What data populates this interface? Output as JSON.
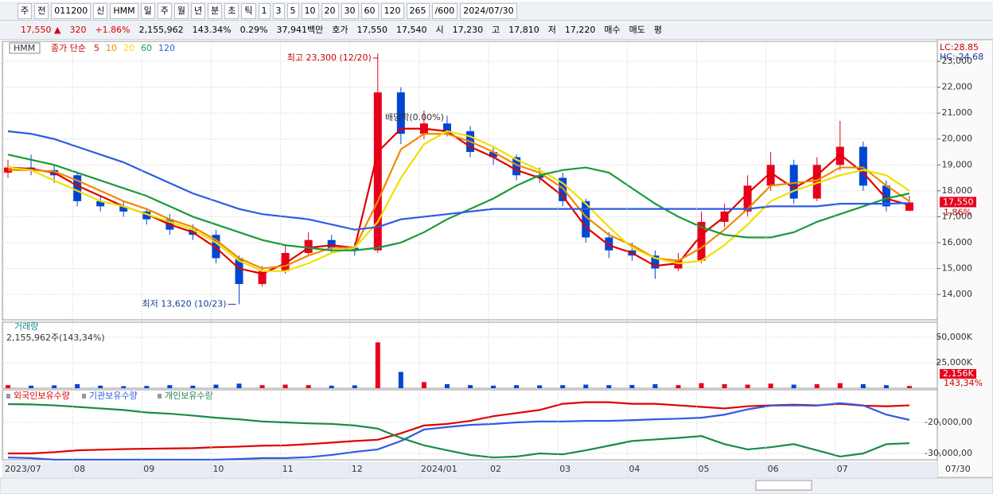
{
  "toolbar": {
    "row1": [
      "주",
      "전",
      "011200",
      "신",
      "HMM",
      "일",
      "주",
      "월",
      "년",
      "분",
      "초",
      "틱",
      "1",
      "3",
      "5",
      "10",
      "20",
      "30",
      "60",
      "120",
      "265",
      "/600",
      "2024/07/30"
    ],
    "row2": [
      "17,550 ▲",
      "320",
      "+1.86%",
      "2,155,962",
      "143.34%",
      "0.29%",
      "37,941백만",
      "호가",
      "17,550",
      "17,540",
      "시",
      "17,230",
      "고",
      "17,810",
      "저",
      "17,220",
      "매수",
      "매도",
      "평"
    ]
  },
  "chart_data": [
    {
      "type": "candlestick",
      "symbol": "HMM",
      "legend_prefix": "종가 단순",
      "open": [
        18700,
        18900,
        18800,
        18600,
        17600,
        17400,
        17200,
        16900,
        16500,
        16300,
        15400,
        14400,
        14900,
        15600,
        16100,
        15800,
        15700,
        21800,
        20200,
        20600,
        20300,
        19500,
        19300,
        18600,
        18500,
        17600,
        16200,
        15700,
        15500,
        15000,
        15300,
        16800,
        17200,
        18200,
        19000,
        17700,
        19000,
        19700,
        18200,
        17230
      ],
      "high": [
        19200,
        19400,
        19000,
        18700,
        17800,
        17600,
        17300,
        17100,
        16700,
        16500,
        15500,
        15100,
        15900,
        16400,
        16300,
        16000,
        23300,
        22000,
        21100,
        20900,
        20500,
        19700,
        19400,
        18900,
        18700,
        17700,
        16400,
        16000,
        15700,
        15600,
        17200,
        17500,
        18600,
        19500,
        19200,
        19300,
        20700,
        19900,
        18400,
        17810
      ],
      "low": [
        18500,
        18600,
        18300,
        17400,
        17200,
        17000,
        16700,
        16300,
        16100,
        15200,
        13620,
        14300,
        14800,
        15500,
        15600,
        15500,
        15600,
        19800,
        20000,
        20100,
        19300,
        19000,
        18400,
        18300,
        17400,
        16000,
        15400,
        15300,
        14600,
        14900,
        15200,
        16600,
        17000,
        18000,
        17500,
        17600,
        18800,
        18000,
        17200,
        17220
      ],
      "close": [
        18900,
        18800,
        18600,
        17600,
        17400,
        17200,
        16900,
        16500,
        16300,
        15400,
        14400,
        14900,
        15600,
        16100,
        15800,
        15700,
        21800,
        20200,
        20600,
        20300,
        19500,
        19300,
        18600,
        18500,
        17600,
        16200,
        15700,
        15500,
        15000,
        15300,
        16800,
        17200,
        18200,
        19000,
        17700,
        19000,
        19700,
        18200,
        17400,
        17550
      ],
      "up_color": "#e8001c",
      "down_color": "#0046d5",
      "series": [
        {
          "name": "5",
          "color": "#e00000",
          "values": [
            18900,
            18850,
            18700,
            18200,
            17800,
            17400,
            17100,
            16700,
            16400,
            15800,
            15000,
            14800,
            15200,
            15800,
            15900,
            15800,
            19500,
            20400,
            20400,
            20300,
            19700,
            19300,
            18800,
            18500,
            17800,
            16600,
            15900,
            15600,
            15100,
            15200,
            16300,
            17000,
            17900,
            18700,
            18100,
            18600,
            19400,
            18700,
            17700,
            17450
          ]
        },
        {
          "name": "10",
          "color": "#f08a00",
          "values": [
            18800,
            18800,
            18750,
            18400,
            18000,
            17600,
            17300,
            16900,
            16600,
            16100,
            15400,
            15000,
            15100,
            15500,
            15800,
            15800,
            17600,
            19600,
            20200,
            20200,
            19900,
            19500,
            19000,
            18700,
            18100,
            17000,
            16300,
            15900,
            15400,
            15300,
            15800,
            16500,
            17300,
            18200,
            18300,
            18400,
            18900,
            18900,
            18200,
            17600
          ]
        },
        {
          "name": "20",
          "color": "#f0e000",
          "values": [
            18900,
            18800,
            18400,
            18000,
            17600,
            17400,
            17100,
            16800,
            16500,
            16000,
            15300,
            14900,
            14900,
            15200,
            15600,
            15800,
            16800,
            18500,
            19800,
            20300,
            20100,
            19700,
            19200,
            18800,
            18300,
            17500,
            16600,
            15800,
            15400,
            15200,
            15300,
            15900,
            16700,
            17600,
            18000,
            18300,
            18600,
            18800,
            18600,
            18000
          ]
        },
        {
          "name": "60",
          "color": "#1a9a3a",
          "values": [
            19400,
            19200,
            19000,
            18700,
            18400,
            18100,
            17800,
            17400,
            17000,
            16700,
            16400,
            16100,
            15900,
            15800,
            15700,
            15700,
            15800,
            16000,
            16400,
            16900,
            17300,
            17700,
            18200,
            18600,
            18800,
            18900,
            18700,
            18100,
            17500,
            17000,
            16600,
            16300,
            16200,
            16200,
            16400,
            16800,
            17100,
            17400,
            17700,
            17900
          ]
        },
        {
          "name": "120",
          "color": "#2f5be0",
          "values": [
            20300,
            20200,
            20000,
            19700,
            19400,
            19100,
            18700,
            18300,
            17900,
            17600,
            17300,
            17100,
            17000,
            16900,
            16700,
            16500,
            16600,
            16900,
            17000,
            17100,
            17200,
            17300,
            17300,
            17300,
            17300,
            17300,
            17300,
            17300,
            17300,
            17300,
            17300,
            17300,
            17300,
            17400,
            17400,
            17400,
            17500,
            17500,
            17500,
            17530
          ]
        }
      ],
      "ylim": [
        13020,
        23770
      ],
      "yticks": [
        {
          "value": 14000,
          "label": "14,000"
        },
        {
          "value": 15000,
          "label": "15,000"
        },
        {
          "value": 16000,
          "label": "16,000"
        },
        {
          "value": 17000,
          "label": "17,000"
        },
        {
          "value": 18000,
          "label": "18,000"
        },
        {
          "value": 19000,
          "label": "19,000"
        },
        {
          "value": 20000,
          "label": "20,000"
        },
        {
          "value": 21000,
          "label": "21,000"
        },
        {
          "value": 22000,
          "label": "22,000"
        },
        {
          "value": 23000,
          "label": "23,000"
        }
      ],
      "annotations": {
        "high": "최고 23,300 (12/20)",
        "low": "최저 13,620 (10/23)",
        "dividend": "배당락(0.00%)",
        "lc": "LC:28.85",
        "hc": "HC:-24.68",
        "last": "17,550",
        "change": "1.86%"
      },
      "grid": true
    },
    {
      "type": "bar",
      "title": "거래량",
      "subtitle": "2,155,962주(143,34%)",
      "values": [
        3000,
        2500,
        2800,
        4000,
        2500,
        2000,
        2200,
        3000,
        2500,
        3500,
        4500,
        3000,
        3500,
        3000,
        2500,
        2800,
        45000,
        16000,
        6000,
        4000,
        3000,
        2500,
        3000,
        2800,
        3000,
        3500,
        3000,
        3200,
        4000,
        3000,
        5000,
        4000,
        3500,
        4500,
        3500,
        4000,
        5000,
        4000,
        3000,
        2156
      ],
      "ylim": [
        0,
        64800
      ],
      "yticks": [
        {
          "value": 25000,
          "label": "25,000K"
        },
        {
          "value": 50000,
          "label": "50,000K"
        }
      ],
      "last_label": "2,156K",
      "ratio_label": "143,34%"
    },
    {
      "type": "line",
      "categories": [
        "2023/07",
        null,
        null,
        "08",
        null,
        null,
        "09",
        null,
        null,
        "10",
        null,
        null,
        "11",
        null,
        null,
        "12",
        null,
        null,
        "2024/01",
        null,
        null,
        "02",
        null,
        null,
        "03",
        null,
        null,
        "04",
        null,
        null,
        "05",
        null,
        null,
        "06",
        null,
        null,
        "07",
        null,
        null,
        null
      ],
      "end_label": "07/30",
      "series": [
        {
          "name": "외국인보유수량",
          "color": "#e00000",
          "values": [
            -30000000,
            -30000000,
            -29600000,
            -29000000,
            -28800000,
            -28600000,
            -28500000,
            -28400000,
            -28300000,
            -28000000,
            -27800000,
            -27500000,
            -27400000,
            -27000000,
            -26500000,
            -26000000,
            -25600000,
            -23500000,
            -21000000,
            -20500000,
            -19500000,
            -18000000,
            -17000000,
            -16000000,
            -14000000,
            -13500000,
            -13500000,
            -14000000,
            -14000000,
            -14500000,
            -15000000,
            -15500000,
            -14800000,
            -14500000,
            -14300000,
            -14500000,
            -14000000,
            -14600000,
            -14800000,
            -14500000
          ]
        },
        {
          "name": "기관보유수량",
          "color": "#2f5be0",
          "values": [
            -31300000,
            -31500000,
            -32000000,
            -32000000,
            -32000000,
            -32000000,
            -32000000,
            -32000000,
            -32000000,
            -32000000,
            -31800000,
            -31500000,
            -31500000,
            -31200000,
            -30500000,
            -29500000,
            -28700000,
            -26000000,
            -22300000,
            -21500000,
            -20800000,
            -20500000,
            -20000000,
            -19700000,
            -19700000,
            -19500000,
            -19500000,
            -19300000,
            -19000000,
            -18800000,
            -18500000,
            -17500000,
            -15800000,
            -14600000,
            -14500000,
            -14600000,
            -13800000,
            -14500000,
            -17500000,
            -19200000
          ]
        },
        {
          "name": "개인보유수량",
          "color": "#1a8a4a",
          "values": [
            -14100000,
            -14200000,
            -14500000,
            -15000000,
            -15500000,
            -16000000,
            -16800000,
            -17200000,
            -17800000,
            -18500000,
            -19000000,
            -19700000,
            -20000000,
            -20300000,
            -20500000,
            -21000000,
            -22000000,
            -25000000,
            -27400000,
            -29000000,
            -30500000,
            -31300000,
            -31000000,
            -30000000,
            -30300000,
            -29000000,
            -27500000,
            -26000000,
            -25500000,
            -25000000,
            -24400000,
            -27000000,
            -28700000,
            -28000000,
            -27000000,
            -29000000,
            -31000000,
            -30000000,
            -27000000,
            -26700000
          ]
        }
      ],
      "ylim": [
        -32050000,
        -9490000
      ],
      "yticks": [
        {
          "value": -20000000,
          "label": "-20,000,00"
        },
        {
          "value": -30000000,
          "label": "-30,000,00"
        }
      ]
    }
  ]
}
